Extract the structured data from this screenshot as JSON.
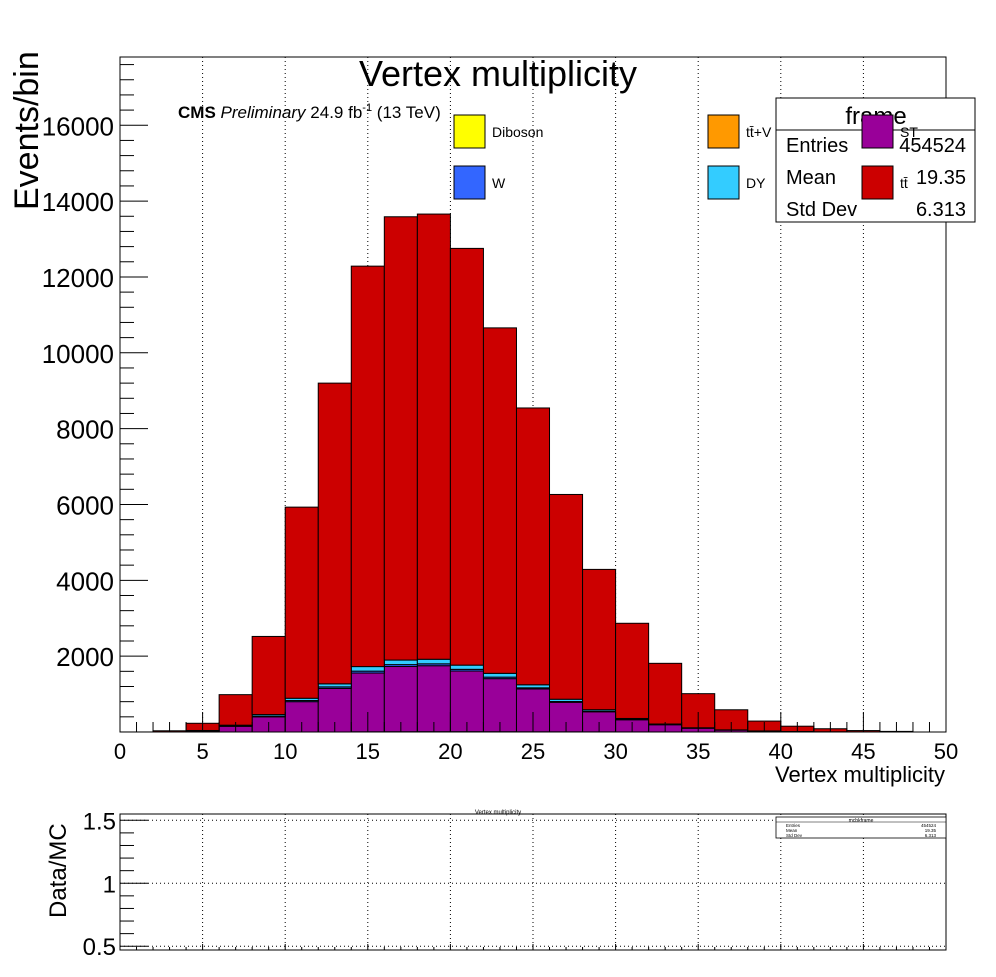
{
  "chart_data": [
    {
      "type": "bar",
      "stacked": true,
      "title": "Vertex multiplicity",
      "xlabel": "Vertex multiplicity",
      "ylabel": "Events/bin",
      "xlim": [
        0,
        50
      ],
      "ylim": [
        0,
        17800
      ],
      "bin_width": 2,
      "bin_edges": [
        0,
        2,
        4,
        6,
        8,
        10,
        12,
        14,
        16,
        18,
        20,
        22,
        24,
        26,
        28,
        30,
        32,
        34,
        36,
        38,
        40,
        42,
        44,
        46,
        48
      ],
      "x_ticks": [
        0,
        5,
        10,
        15,
        20,
        25,
        30,
        35,
        40,
        45,
        50
      ],
      "y_ticks": [
        2000,
        4000,
        6000,
        8000,
        10000,
        12000,
        14000,
        16000
      ],
      "grid": "x-only dotted",
      "cms_label": {
        "cms": "CMS",
        "preliminary": "Preliminary",
        "lumi": "24.9 fb",
        "lumi_exp": "-1",
        "energy": "(13 TeV)"
      },
      "legend_entries": [
        {
          "label": "Diboson",
          "color": "#ffff00"
        },
        {
          "label": "tt̄+V",
          "color": "#ff9900"
        },
        {
          "label": "ST",
          "color": "#990099"
        },
        {
          "label": "W",
          "color": "#3366ff"
        },
        {
          "label": "DY",
          "color": "#33ccff"
        },
        {
          "label": "tt̄",
          "color": "#cc0000"
        }
      ],
      "stats_box": {
        "title": "frame",
        "entries_label": "Entries",
        "entries_value": "454524",
        "mean_label": "Mean",
        "mean_value": "19.35",
        "stddev_label": "Std Dev",
        "stddev_value": "6.313"
      },
      "series": [
        {
          "name": "Diboson",
          "color": "#ffff00",
          "values": [
            0,
            0,
            0,
            0,
            0,
            0,
            0,
            3,
            4,
            5,
            5,
            4,
            3,
            2,
            2,
            1,
            1,
            0,
            0,
            0,
            0,
            0,
            0,
            0
          ]
        },
        {
          "name": "tt̄+V",
          "color": "#ff9900",
          "values": [
            0,
            0,
            0,
            0,
            0,
            0,
            0,
            2,
            3,
            3,
            3,
            3,
            2,
            2,
            1,
            1,
            0,
            0,
            0,
            0,
            0,
            0,
            0,
            0
          ]
        },
        {
          "name": "ST",
          "color": "#990099",
          "values": [
            0,
            2,
            30,
            150,
            400,
            800,
            1150,
            1550,
            1720,
            1740,
            1600,
            1400,
            1130,
            780,
            530,
            320,
            190,
            100,
            50,
            25,
            12,
            6,
            3,
            1
          ]
        },
        {
          "name": "W",
          "color": "#3366ff",
          "values": [
            0,
            0,
            5,
            10,
            20,
            30,
            40,
            50,
            50,
            50,
            45,
            40,
            30,
            20,
            15,
            10,
            5,
            3,
            2,
            1,
            0,
            0,
            0,
            0
          ]
        },
        {
          "name": "DY",
          "color": "#33ccff",
          "values": [
            0,
            0,
            5,
            20,
            40,
            60,
            80,
            120,
            120,
            120,
            110,
            100,
            80,
            60,
            40,
            25,
            15,
            8,
            4,
            2,
            1,
            0,
            0,
            0
          ]
        },
        {
          "name": "tt̄",
          "color": "#cc0000",
          "values": [
            1,
            30,
            190,
            805,
            2060,
            5040,
            7930,
            10560,
            11690,
            11740,
            10990,
            9110,
            7300,
            5400,
            3700,
            2510,
            1600,
            900,
            530,
            260,
            140,
            80,
            35,
            15
          ]
        }
      ]
    },
    {
      "type": "line",
      "ylabel": "Data/MC",
      "xlim": [
        0,
        50
      ],
      "ylim": [
        0.47,
        1.55
      ],
      "y_ticks": [
        0.5,
        1,
        1.5
      ],
      "grid": "both dotted",
      "mini_title": "Vertex multiplicity",
      "mini_stats": {
        "title": "mcbkframe",
        "entries_label": "Entries",
        "entries_value": "454524",
        "mean_label": "Mean",
        "mean_value": "19.35",
        "stddev_label": "Std Dev",
        "stddev_value": "6.313"
      }
    }
  ]
}
